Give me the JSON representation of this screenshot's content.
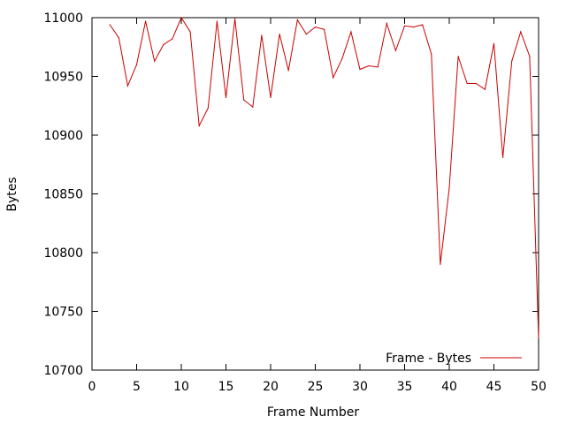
{
  "chart_data": {
    "type": "line",
    "title": "",
    "xlabel": "Frame Number",
    "ylabel": "Bytes",
    "xlim": [
      0,
      50
    ],
    "ylim": [
      10700,
      11000
    ],
    "x_ticks": [
      0,
      5,
      10,
      15,
      20,
      25,
      30,
      35,
      40,
      45,
      50
    ],
    "x_tick_labels": [
      "0",
      "5",
      "10",
      "15",
      "20",
      "25",
      "30",
      "35",
      "40",
      "45",
      "50"
    ],
    "y_ticks": [
      10700,
      10750,
      10800,
      10850,
      10900,
      10950,
      11000
    ],
    "y_tick_labels": [
      "10700",
      "10750",
      "10800",
      "10850",
      "10900",
      "10950",
      "11000"
    ],
    "grid": false,
    "legend_position": "bottom-right",
    "series": [
      {
        "name": "Frame - Bytes",
        "color": "#cc0000",
        "x": [
          2,
          3,
          4,
          5,
          6,
          7,
          8,
          9,
          10,
          11,
          12,
          13,
          14,
          15,
          16,
          17,
          18,
          19,
          20,
          21,
          22,
          23,
          24,
          25,
          26,
          27,
          28,
          29,
          30,
          31,
          32,
          33,
          34,
          35,
          36,
          37,
          38,
          39,
          40,
          41,
          42,
          43,
          44,
          45,
          46,
          47,
          48,
          49,
          50
        ],
        "y": [
          10994,
          10983,
          10942,
          10960,
          10997,
          10963,
          10977,
          10982,
          11000,
          10988,
          10908,
          10923,
          10997,
          10932,
          10999,
          10930,
          10924,
          10985,
          10932,
          10986,
          10955,
          10998,
          10986,
          10992,
          10990,
          10949,
          10965,
          10988,
          10956,
          10959,
          10958,
          10995,
          10972,
          10993,
          10992,
          10994,
          10969,
          10790,
          10855,
          10967,
          10944,
          10944,
          10939,
          10978,
          10881,
          10963,
          10988,
          10967,
          10727
        ]
      }
    ]
  }
}
